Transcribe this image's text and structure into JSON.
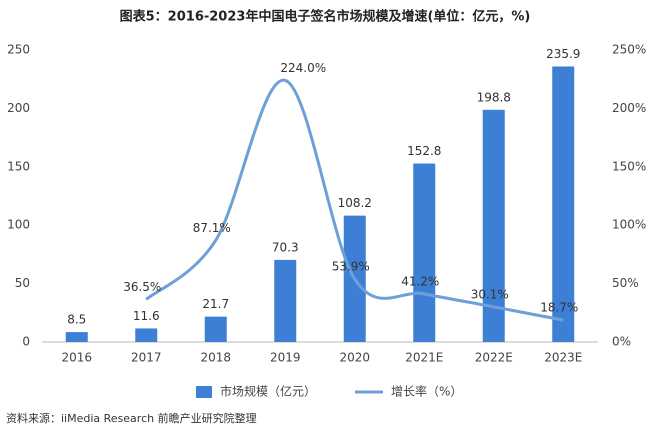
{
  "chart_data": {
    "type": "bar_line",
    "title": "图表5：2016-2023年中国电子签名市场规模及增速(单位：亿元，%)",
    "source": "资料来源：iiMedia Research 前瞻产业研究院整理",
    "categories": [
      "2016",
      "2017",
      "2018",
      "2019",
      "2020",
      "2021E",
      "2022E",
      "2023E"
    ],
    "series": [
      {
        "name": "市场规模（亿元）",
        "type": "bar",
        "color": "#3e7fd6",
        "values": [
          8.5,
          11.6,
          21.7,
          70.3,
          108.2,
          152.8,
          198.8,
          235.9
        ]
      },
      {
        "name": "增长率（%）",
        "type": "line",
        "axis": "y2",
        "color": "#6f9fd8",
        "values": [
          null,
          36.5,
          87.1,
          224.0,
          53.9,
          41.2,
          30.1,
          18.7
        ],
        "value_labels": [
          null,
          "36.5%",
          "87.1%",
          "224.0%",
          "53.9%",
          "41.2%",
          "30.1%",
          "18.7%"
        ]
      }
    ],
    "ylim": [
      0,
      250
    ],
    "yticks": [
      0,
      50,
      100,
      150,
      200,
      250
    ],
    "y2lim": [
      0,
      250
    ],
    "y2ticks": [
      {
        "value": 0,
        "label": "0%"
      },
      {
        "value": 50,
        "label": "50%"
      },
      {
        "value": 100,
        "label": "100%"
      },
      {
        "value": 150,
        "label": "150%"
      },
      {
        "value": 200,
        "label": "200%"
      },
      {
        "value": 250,
        "label": "250%"
      }
    ],
    "grid": false
  }
}
